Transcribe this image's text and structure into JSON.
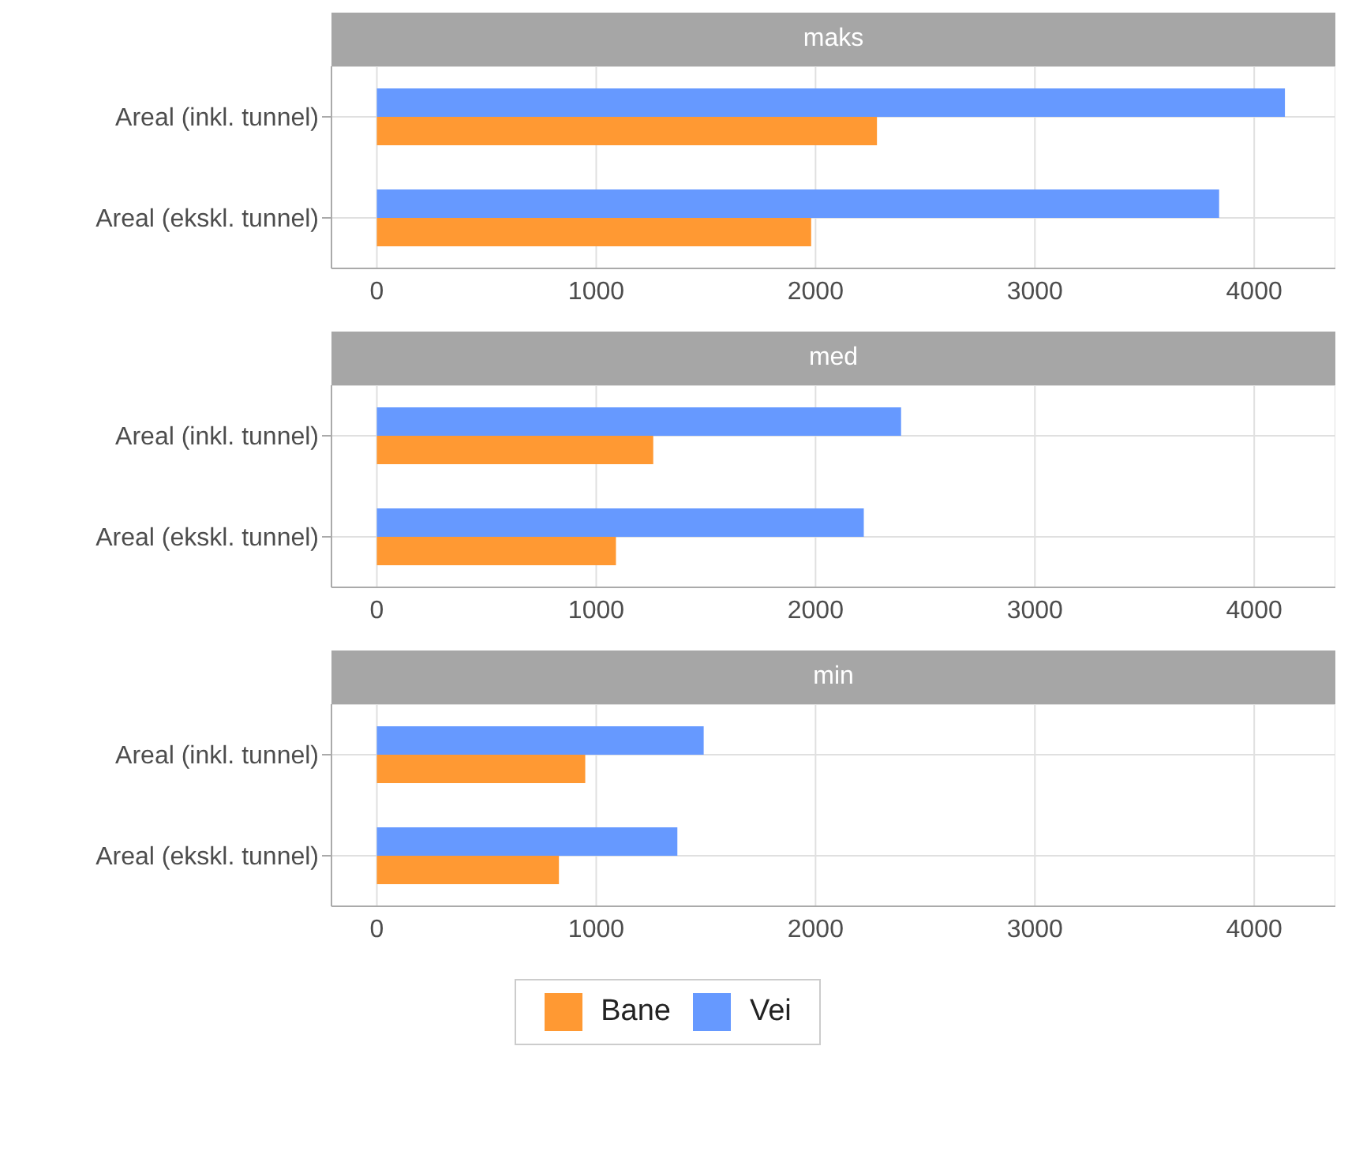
{
  "chart_data": [
    {
      "type": "bar",
      "title": "maks",
      "orientation": "horizontal",
      "categories": [
        "Areal (inkl. tunnel)",
        "Areal (ekskl. tunnel)"
      ],
      "series": [
        {
          "color": "#ff9933",
          "values": [
            2280,
            1980
          ]
        },
        {
          "color": "#6699ff",
          "values": [
            4140,
            3840
          ]
        }
      ],
      "xlim": [
        -207,
        4370
      ],
      "xticks": [
        0,
        1000,
        2000,
        3000,
        4000
      ],
      "grid": true
    },
    {
      "type": "bar",
      "title": "med",
      "orientation": "horizontal",
      "categories": [
        "Areal (inkl. tunnel)",
        "Areal (ekskl. tunnel)"
      ],
      "series": [
        {
          "color": "#ff9933",
          "values": [
            1260,
            1090
          ]
        },
        {
          "color": "#6699ff",
          "values": [
            2390,
            2220
          ]
        }
      ],
      "xlim": [
        -207,
        4370
      ],
      "xticks": [
        0,
        1000,
        2000,
        3000,
        4000
      ],
      "grid": true
    },
    {
      "type": "bar",
      "title": "min",
      "orientation": "horizontal",
      "categories": [
        "Areal (inkl. tunnel)",
        "Areal (ekskl. tunnel)"
      ],
      "series": [
        {
          "name": "Bane",
          "color": "#ff9933",
          "values": [
            950,
            830
          ]
        },
        {
          "name": "Vei",
          "color": "#6699ff",
          "values": [
            1490,
            1370
          ]
        }
      ],
      "xlim": [
        -207,
        4370
      ],
      "xticks": [
        0,
        1000,
        2000,
        3000,
        4000
      ],
      "grid": true,
      "legend": "bottom"
    }
  ]
}
